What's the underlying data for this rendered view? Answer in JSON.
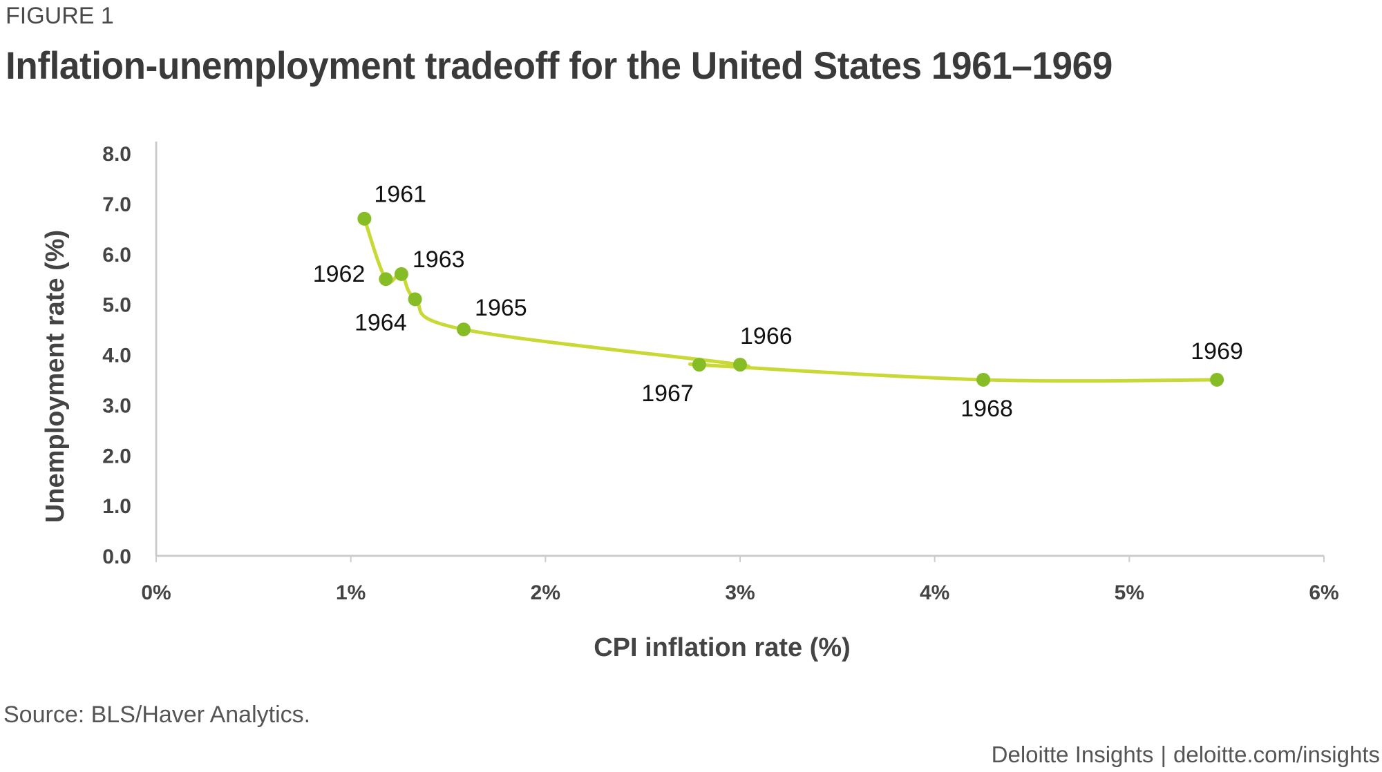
{
  "figure_label": "FIGURE 1",
  "title": "Inflation-unemployment tradeoff for the United States 1961–1969",
  "source": "Source: BLS/Haver Analytics.",
  "credit": {
    "brand": "Deloitte Insights",
    "separator": "|",
    "url": "deloitte.com/insights"
  },
  "colors": {
    "line": "#c8d935",
    "point": "#86bc25",
    "axis": "#cccccc",
    "text": "#3a3a3a"
  },
  "chart_data": {
    "type": "line",
    "title": "Inflation-unemployment tradeoff for the United States 1961–1969",
    "xlabel": "CPI inflation rate (%)",
    "ylabel": "Unemployment rate (%)",
    "xlim": [
      0,
      6
    ],
    "ylim": [
      0,
      8
    ],
    "x_ticks": [
      "0%",
      "1%",
      "2%",
      "3%",
      "4%",
      "5%",
      "6%"
    ],
    "y_ticks": [
      "0.0",
      "1.0",
      "2.0",
      "3.0",
      "4.0",
      "5.0",
      "6.0",
      "7.0",
      "8.0"
    ],
    "grid": false,
    "points": [
      {
        "label": "1961",
        "x": 1.07,
        "y": 6.7
      },
      {
        "label": "1962",
        "x": 1.18,
        "y": 5.5
      },
      {
        "label": "1963",
        "x": 1.26,
        "y": 5.6
      },
      {
        "label": "1964",
        "x": 1.33,
        "y": 5.1
      },
      {
        "label": "1965",
        "x": 1.58,
        "y": 4.5
      },
      {
        "label": "1966",
        "x": 3.0,
        "y": 3.8
      },
      {
        "label": "1967",
        "x": 2.79,
        "y": 3.8
      },
      {
        "label": "1968",
        "x": 4.25,
        "y": 3.5
      },
      {
        "label": "1969",
        "x": 5.45,
        "y": 3.5
      }
    ]
  }
}
